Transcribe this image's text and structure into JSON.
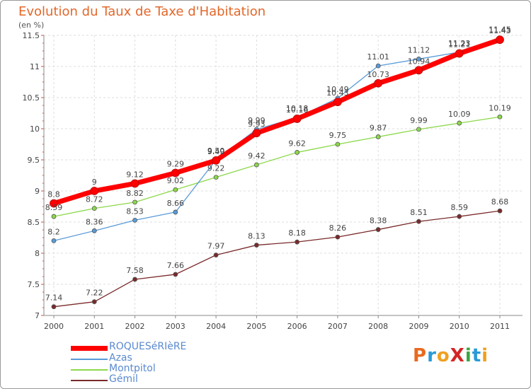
{
  "header": {
    "title": "Evolution du Taux de Taxe d'Habitation",
    "unit": "(en %)"
  },
  "logo": {
    "text": "ProXiti",
    "letter_colors": [
      "#e86a1f",
      "#2a9ad8",
      "#f0a020",
      "#d42424",
      "#3aa640",
      "#2a9ad8",
      "#f0a020"
    ]
  },
  "chart_data": {
    "type": "line",
    "x": [
      "2000",
      "2001",
      "2002",
      "2003",
      "2004",
      "2005",
      "2006",
      "2007",
      "2008",
      "2009",
      "2010",
      "2011"
    ],
    "ylim": [
      7,
      11.5
    ],
    "yticks": [
      "7",
      "7.5",
      "8",
      "8.5",
      "9",
      "9.5",
      "10",
      "10.5",
      "11",
      "11.5"
    ],
    "grid": true,
    "legend_position": "bottom-left",
    "series": [
      {
        "name": "ROQUESéRIèRE",
        "color": "#ff0000",
        "values": [
          8.8,
          9,
          9.12,
          9.29,
          9.49,
          9.93,
          10.16,
          10.43,
          10.73,
          10.94,
          11.21,
          11.43
        ],
        "labels": [
          "8.8",
          "9",
          "9.12",
          "9.29",
          "9.49",
          "9.93",
          "10.16",
          "10.43",
          "10.73",
          "10.94",
          "11.21",
          "11.43"
        ]
      },
      {
        "name": "Azas",
        "color": "#5a9bd8",
        "values": [
          8.2,
          8.36,
          8.53,
          8.66,
          9.5,
          9.99,
          10.18,
          10.49,
          11.01,
          11.12,
          11.23,
          11.45
        ],
        "labels": [
          "8.2",
          "8.36",
          "8.53",
          "8.66",
          "9.50",
          "9.99",
          "10.18",
          "10.49",
          "11.01",
          "11.12",
          "11.23",
          "11.45"
        ]
      },
      {
        "name": "Montpitol",
        "color": "#8cd84a",
        "values": [
          8.59,
          8.72,
          8.82,
          9.02,
          9.22,
          9.42,
          9.62,
          9.75,
          9.87,
          9.99,
          10.09,
          10.19
        ],
        "labels": [
          "8.59",
          "8.72",
          "8.82",
          "9.02",
          "9.22",
          "9.42",
          "9.62",
          "9.75",
          "9.87",
          "9.99",
          "10.09",
          "10.19"
        ]
      },
      {
        "name": "Gémil",
        "color": "#7a2a2a",
        "values": [
          7.14,
          7.22,
          7.58,
          7.66,
          7.97,
          8.13,
          8.18,
          8.26,
          8.38,
          8.51,
          8.59,
          8.68
        ],
        "labels": [
          "7.14",
          "7.22",
          "7.58",
          "7.66",
          "7.97",
          "8.13",
          "8.18",
          "8.26",
          "8.38",
          "8.51",
          "8.59",
          "8.68"
        ]
      }
    ]
  }
}
